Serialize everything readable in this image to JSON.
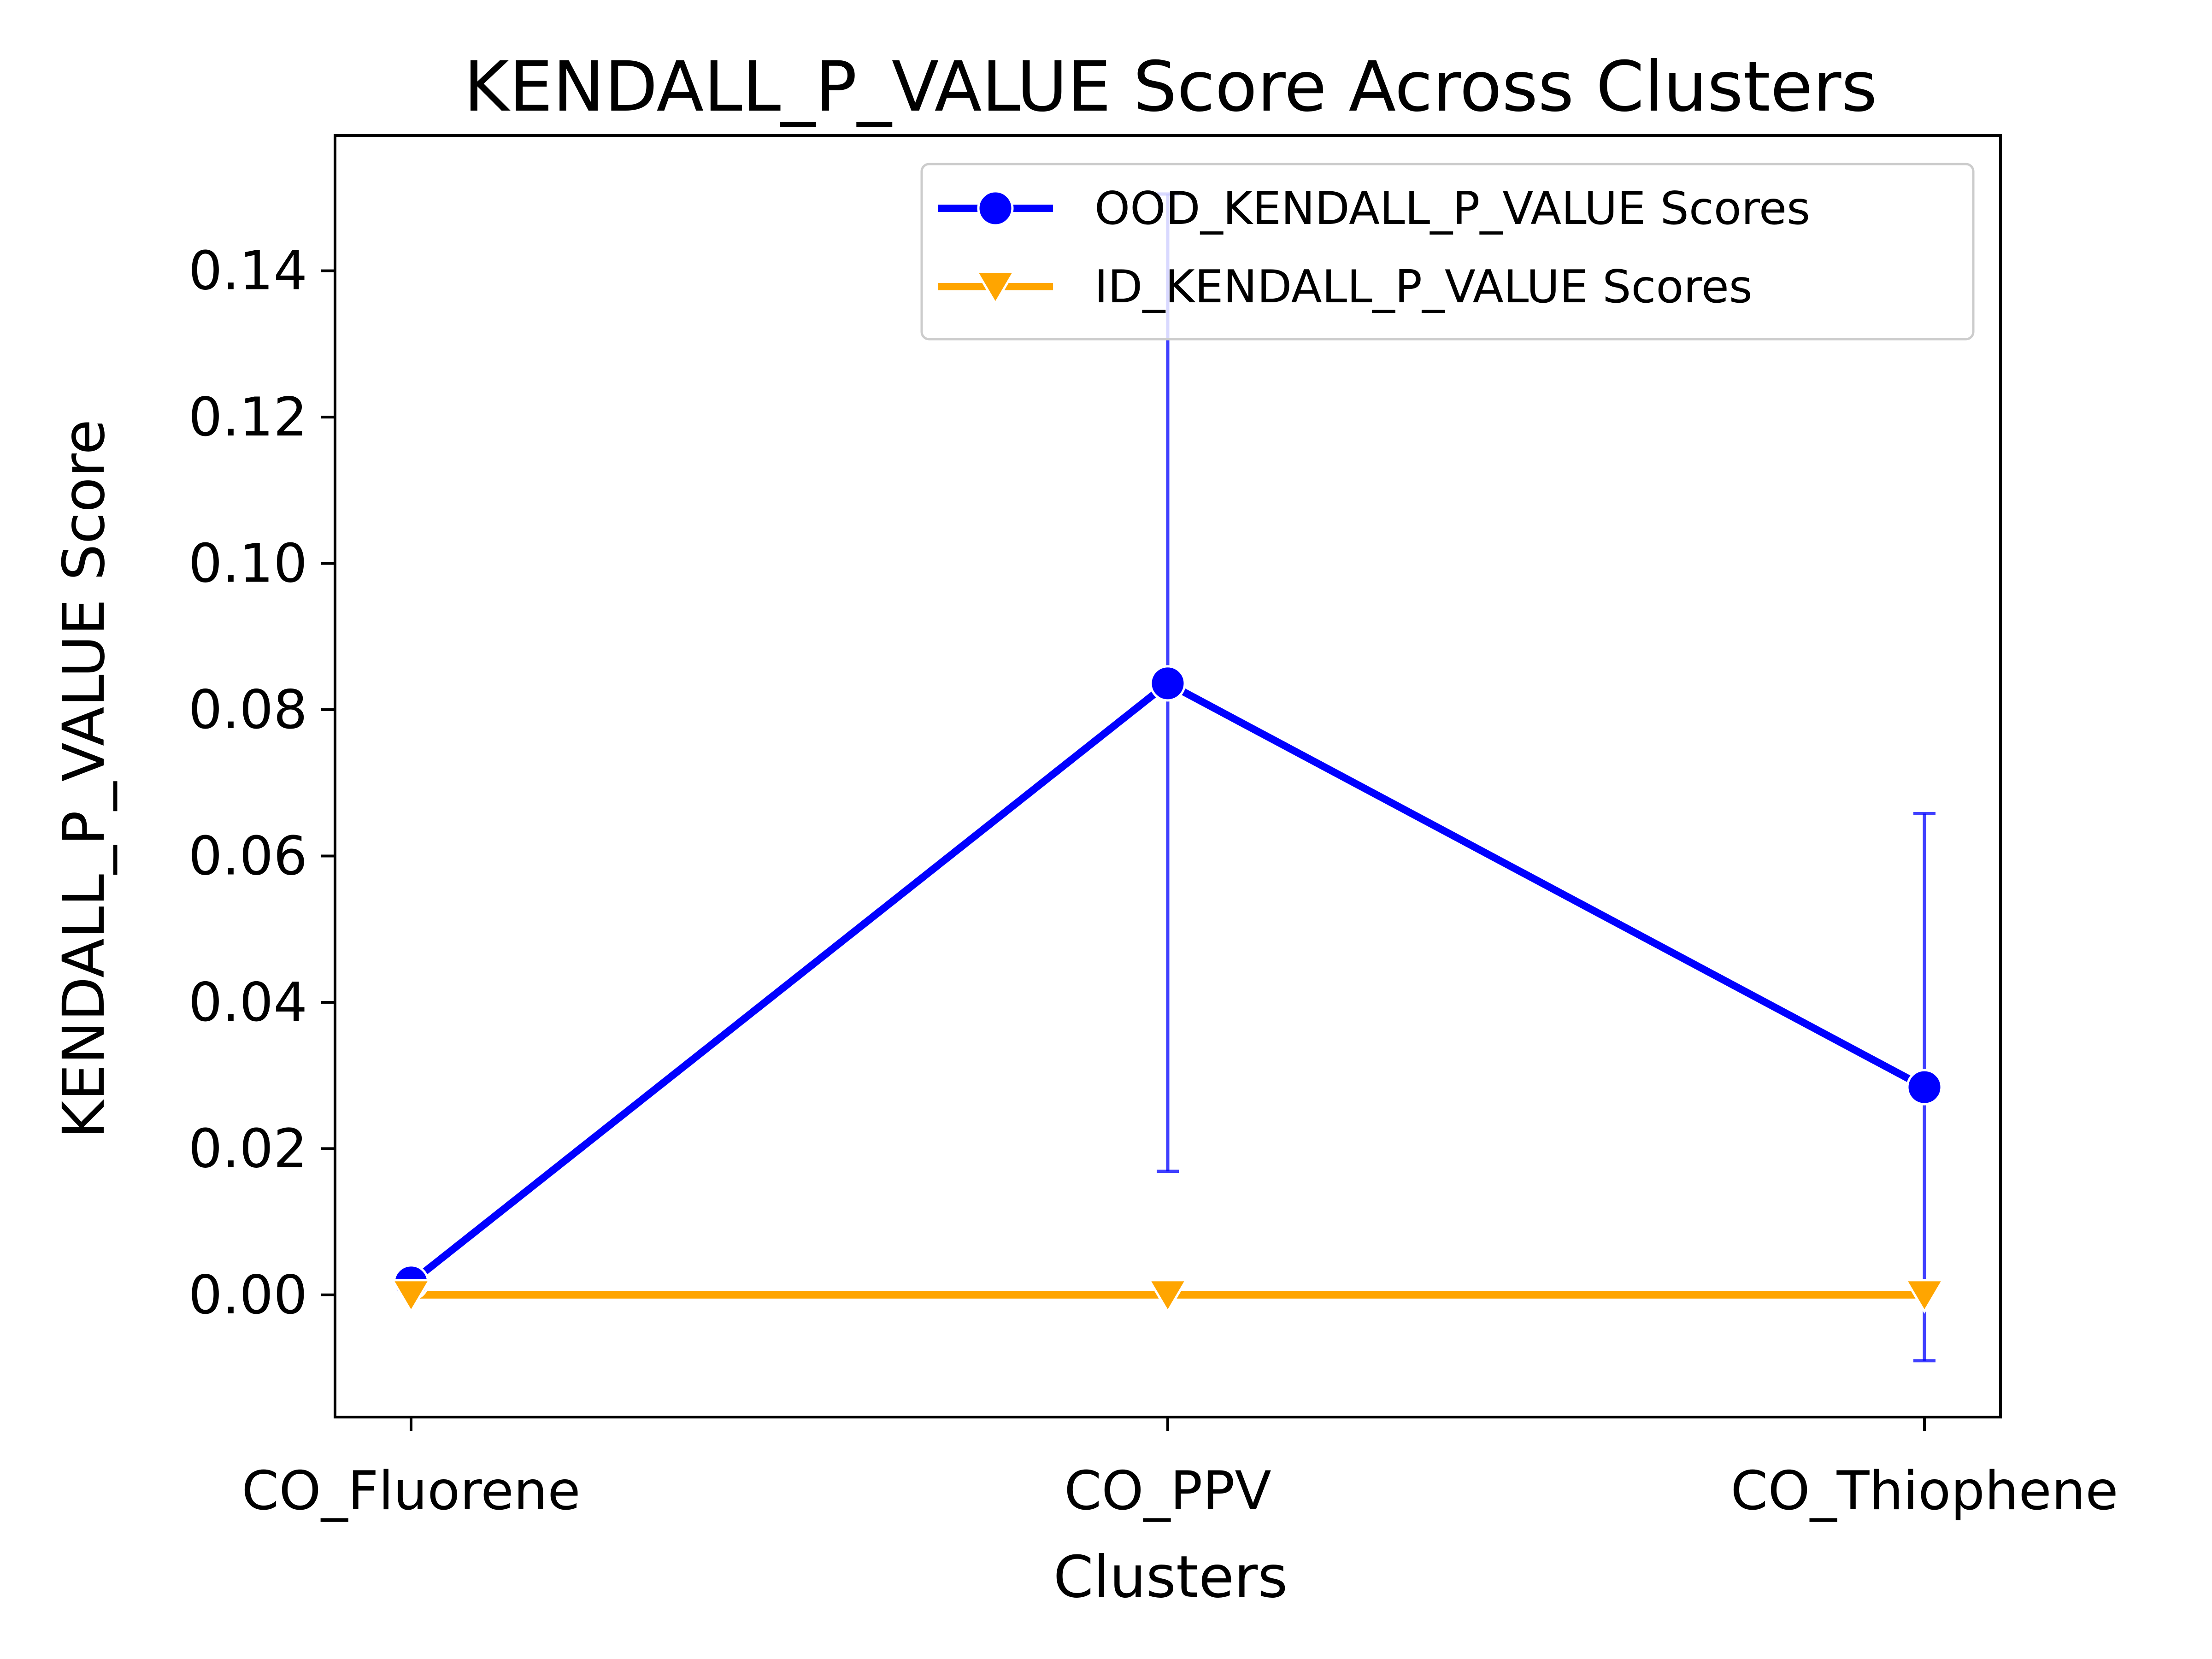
{
  "chart_data": {
    "type": "line",
    "title": "KENDALL_P_VALUE Score Across Clusters",
    "xlabel": "Clusters",
    "ylabel": "KENDALL_P_VALUE Score",
    "categories": [
      "CO_Fluorene",
      "CO_PPV",
      "CO_Thiophene"
    ],
    "ylim": [
      -0.0167,
      0.1585
    ],
    "yticks": [
      0.0,
      0.02,
      0.04,
      0.06,
      0.08,
      0.1,
      0.12,
      0.14
    ],
    "yticklabels": [
      "0.00",
      "0.02",
      "0.04",
      "0.06",
      "0.08",
      "0.10",
      "0.12",
      "0.14"
    ],
    "grid": false,
    "legend_position": "top-right",
    "series": [
      {
        "name": "OOD_KENDALL_P_VALUE Scores",
        "color": "#0000ff",
        "marker": "circle",
        "values": [
          0.0017,
          0.0836,
          0.0284
        ],
        "error_low": [
          null,
          0.0169,
          -0.009
        ],
        "error_high": [
          null,
          0.1505,
          0.0658
        ]
      },
      {
        "name": "ID_KENDALL_P_VALUE Scores",
        "color": "#ffa500",
        "marker": "triangle-down",
        "values": [
          0.0,
          0.0,
          0.0
        ],
        "error_low": [
          null,
          null,
          null
        ],
        "error_high": [
          null,
          null,
          null
        ]
      }
    ]
  }
}
